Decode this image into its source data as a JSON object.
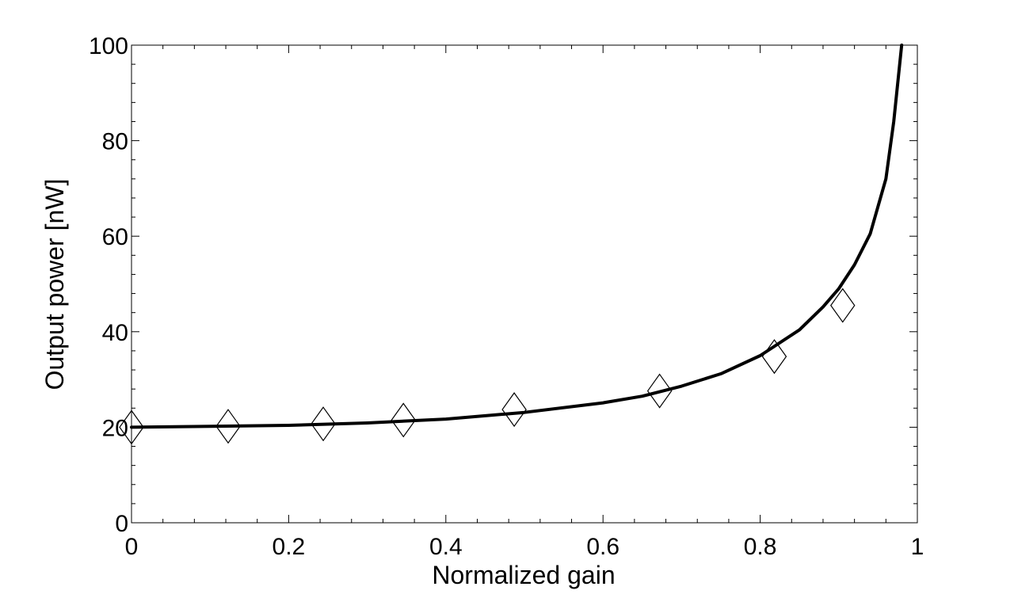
{
  "chart_data": {
    "type": "line",
    "title": "",
    "xlabel": "Normalized gain",
    "ylabel": "Output power [nW]",
    "xlim": [
      0,
      1
    ],
    "ylim": [
      0,
      100
    ],
    "xticks": [
      0,
      0.2,
      0.4,
      0.6,
      0.8,
      1
    ],
    "xtick_labels": [
      "0",
      "0.2",
      "0.4",
      "0.6",
      "0.8",
      "1"
    ],
    "yticks": [
      0,
      20,
      40,
      60,
      80,
      100
    ],
    "ytick_labels": [
      "0",
      "20",
      "40",
      "60",
      "80",
      "100"
    ],
    "grid": false,
    "box": true,
    "series": [
      {
        "kind": "line",
        "color": "#000000",
        "x": [
          0,
          0.1,
          0.2,
          0.3,
          0.4,
          0.5,
          0.6,
          0.65,
          0.7,
          0.75,
          0.8,
          0.85,
          0.88,
          0.9,
          0.92,
          0.94,
          0.96,
          0.97,
          0.98
        ],
        "y": [
          20,
          20.2,
          20.4,
          20.9,
          21.7,
          23.1,
          25.1,
          26.5,
          28.6,
          31.2,
          35.0,
          40.4,
          45.2,
          49.0,
          54.0,
          60.5,
          72.0,
          84.0,
          100.0
        ]
      },
      {
        "kind": "marker",
        "marker": "diamond",
        "color": "#000000",
        "x": [
          0.0,
          0.123,
          0.244,
          0.346,
          0.487,
          0.672,
          0.818,
          0.905
        ],
        "y": [
          20.0,
          20.2,
          20.7,
          21.5,
          23.7,
          27.6,
          34.8,
          45.5
        ]
      }
    ]
  }
}
